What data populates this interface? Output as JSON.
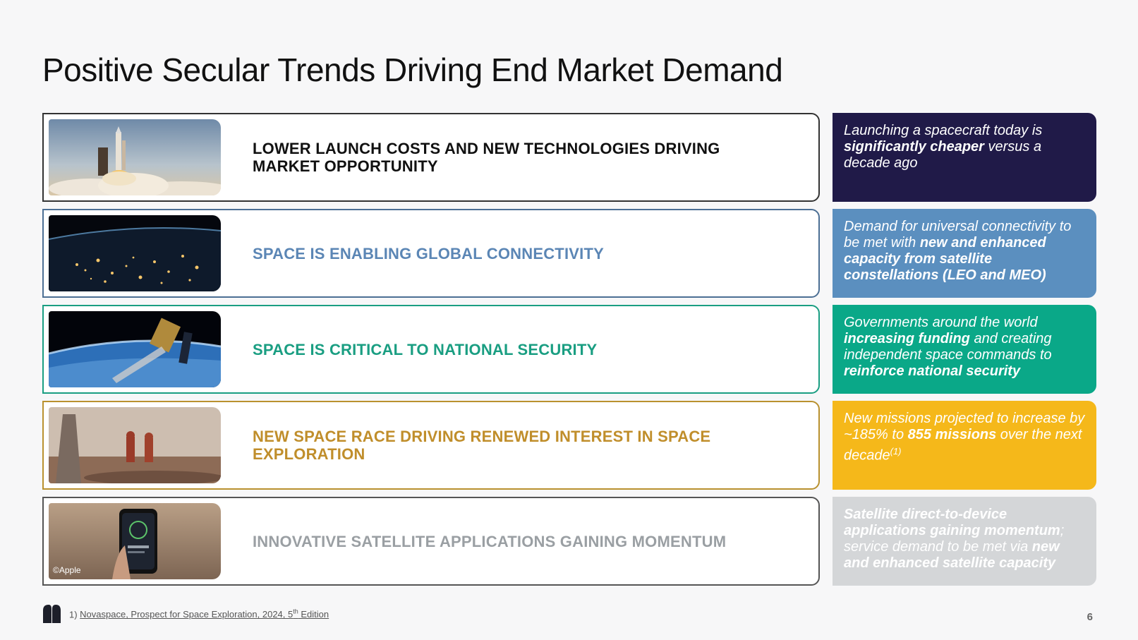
{
  "title": "Positive Secular Trends Driving End Market Demand",
  "rows": [
    {
      "headline": "LOWER LAUNCH COSTS AND NEW TECHNOLOGIES DRIVING MARKET OPPORTUNITY",
      "headline_color": "#111111",
      "border_color": "#333333",
      "callout_color": "#201a48",
      "callout": [
        {
          "t": "Launching a spacecraft today is ",
          "b": false
        },
        {
          "t": "significantly cheaper",
          "b": true
        },
        {
          "t": " versus a decade ago",
          "b": false
        }
      ]
    },
    {
      "headline": "SPACE IS ENABLING GLOBAL CONNECTIVITY",
      "headline_color": "#5b86b5",
      "border_color": "#4c6f94",
      "callout_color": "#5b8fbf",
      "callout": [
        {
          "t": "Demand for universal connectivity to be met with ",
          "b": false
        },
        {
          "t": "new and enhanced capacity from satellite constellations (LEO and MEO)",
          "b": true
        }
      ]
    },
    {
      "headline": "SPACE IS CRITICAL TO NATIONAL SECURITY",
      "headline_color": "#1a9e82",
      "border_color": "#1a9e82",
      "callout_color": "#0aa888",
      "callout": [
        {
          "t": "Governments around the world ",
          "b": false
        },
        {
          "t": "increasing funding",
          "b": true
        },
        {
          "t": " and creating independent space commands to ",
          "b": false
        },
        {
          "t": "reinforce national security",
          "b": true
        }
      ]
    },
    {
      "headline": "NEW SPACE RACE DRIVING RENEWED INTEREST IN SPACE EXPLORATION",
      "headline_color": "#c08e2b",
      "border_color": "#b9912f",
      "callout_color": "#f5b81a",
      "callout": [
        {
          "t": "New missions projected to increase by ~185% to ",
          "b": false
        },
        {
          "t": "855 missions",
          "b": true
        },
        {
          "t": " over the next decade",
          "b": false
        },
        {
          "t": "(1)",
          "b": false,
          "sup": true
        }
      ]
    },
    {
      "headline": "INNOVATIVE SATELLITE APPLICATIONS GAINING MOMENTUM",
      "headline_color": "#9a9fa3",
      "border_color": "#555555",
      "callout_color": "#d4d6d8",
      "callout": [
        {
          "t": "Satellite direct-to-device applications gaining momentum",
          "b": true
        },
        {
          "t": "; service demand to be met via ",
          "b": false
        },
        {
          "t": "new and enhanced satellite capacity",
          "b": true
        }
      ],
      "credit": "©Apple"
    }
  ],
  "footnote": {
    "number": "1) ",
    "text": "Novaspace, Prospect for Space Exploration, 2024, 5",
    "sup": "th",
    "tail": " Edition"
  },
  "page_number": "6",
  "icons": {
    "logo": "brand-logo-icon"
  }
}
